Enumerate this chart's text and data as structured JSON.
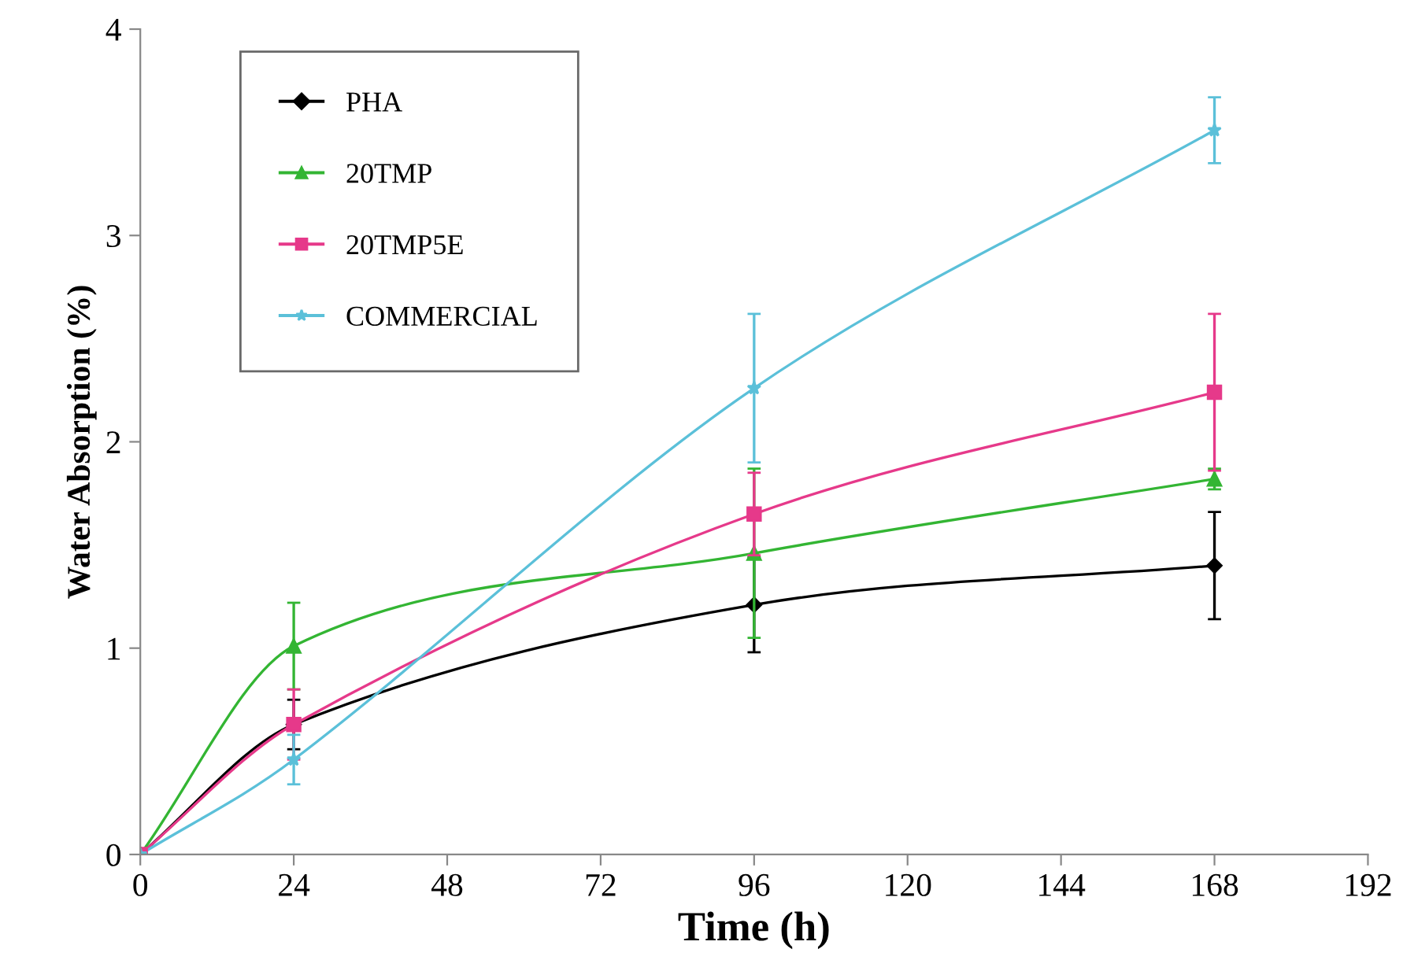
{
  "chart_data": {
    "type": "line",
    "xlabel": "Time (h)",
    "ylabel": "Water Absorption (%)",
    "x": [
      0,
      24,
      96,
      168
    ],
    "xlim": [
      0,
      192
    ],
    "xticks": [
      0,
      24,
      48,
      72,
      96,
      120,
      144,
      168,
      192
    ],
    "ylim": [
      0,
      4
    ],
    "yticks": [
      0,
      1,
      2,
      3,
      4
    ],
    "grid": false,
    "legend": "top left",
    "series": [
      {
        "name": "PHA",
        "color": "#000000",
        "marker": "diamond",
        "values": [
          0,
          0.63,
          1.21,
          1.4
        ],
        "errors": [
          0,
          0.12,
          0.23,
          0.26
        ]
      },
      {
        "name": "20TMP",
        "color": "#33b533",
        "marker": "triangle",
        "values": [
          0,
          1.01,
          1.46,
          1.82
        ],
        "errors": [
          0,
          0.21,
          0.41,
          0.05
        ]
      },
      {
        "name": "20TMP5E",
        "color": "#e6398a",
        "marker": "square",
        "values": [
          0,
          0.63,
          1.65,
          2.24
        ],
        "errors": [
          0,
          0.17,
          0.2,
          0.38
        ]
      },
      {
        "name": "COMMERCIAL",
        "color": "#5bc0d9",
        "marker": "star",
        "values": [
          0,
          0.46,
          2.26,
          3.51
        ],
        "errors": [
          0,
          0.12,
          0.36,
          0.16
        ]
      }
    ]
  }
}
